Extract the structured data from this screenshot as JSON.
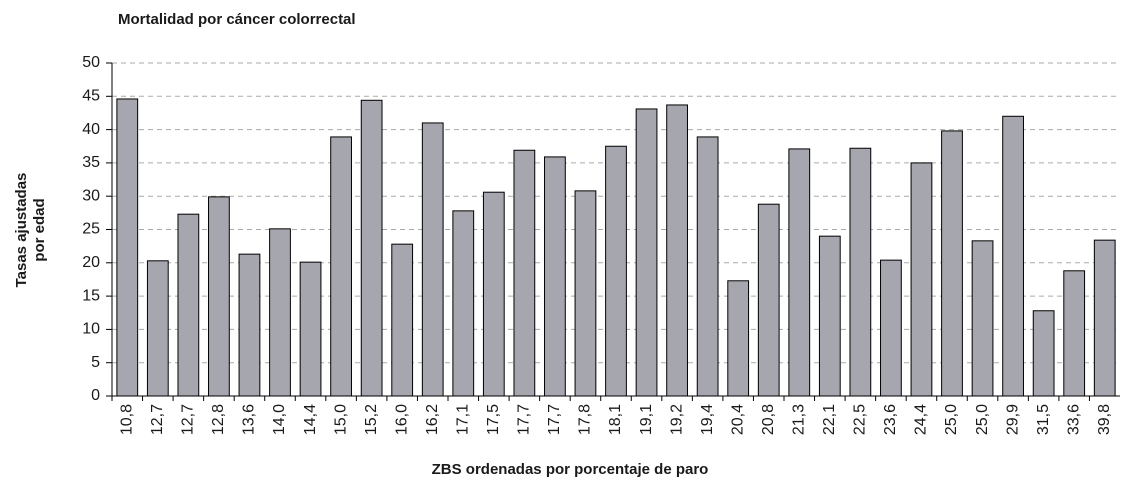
{
  "chart_data": {
    "type": "bar",
    "title": "Mortalidad por cáncer colorrectal",
    "xlabel": "ZBS ordenadas por porcentaje de paro",
    "ylabel": [
      "Tasas ajustadas",
      "por edad"
    ],
    "categories": [
      "10,8",
      "12,7",
      "12,7",
      "12,8",
      "13,6",
      "14,0",
      "14,4",
      "15,0",
      "15,2",
      "16,0",
      "16,2",
      "17,1",
      "17,5",
      "17,7",
      "17,7",
      "17,8",
      "18,1",
      "19,1",
      "19,2",
      "19,4",
      "20,4",
      "20,8",
      "21,3",
      "22,1",
      "22,5",
      "23,6",
      "24,4",
      "25,0",
      "25,0",
      "29,9",
      "31,5",
      "33,6",
      "39,8"
    ],
    "values": [
      44.6,
      20.3,
      27.3,
      29.9,
      21.3,
      25.1,
      20.1,
      38.9,
      44.4,
      22.8,
      41.0,
      27.8,
      30.6,
      36.9,
      35.9,
      30.8,
      37.5,
      43.1,
      43.7,
      38.9,
      17.3,
      28.8,
      37.1,
      24.0,
      37.2,
      20.4,
      35.0,
      39.8,
      23.3,
      42.0,
      12.8,
      18.8,
      23.4
    ],
    "color": "#a6a6ae",
    "ylim": [
      0,
      50
    ],
    "yticks": [
      0,
      5,
      10,
      15,
      20,
      25,
      30,
      35,
      40,
      45,
      50
    ],
    "grid": true
  }
}
